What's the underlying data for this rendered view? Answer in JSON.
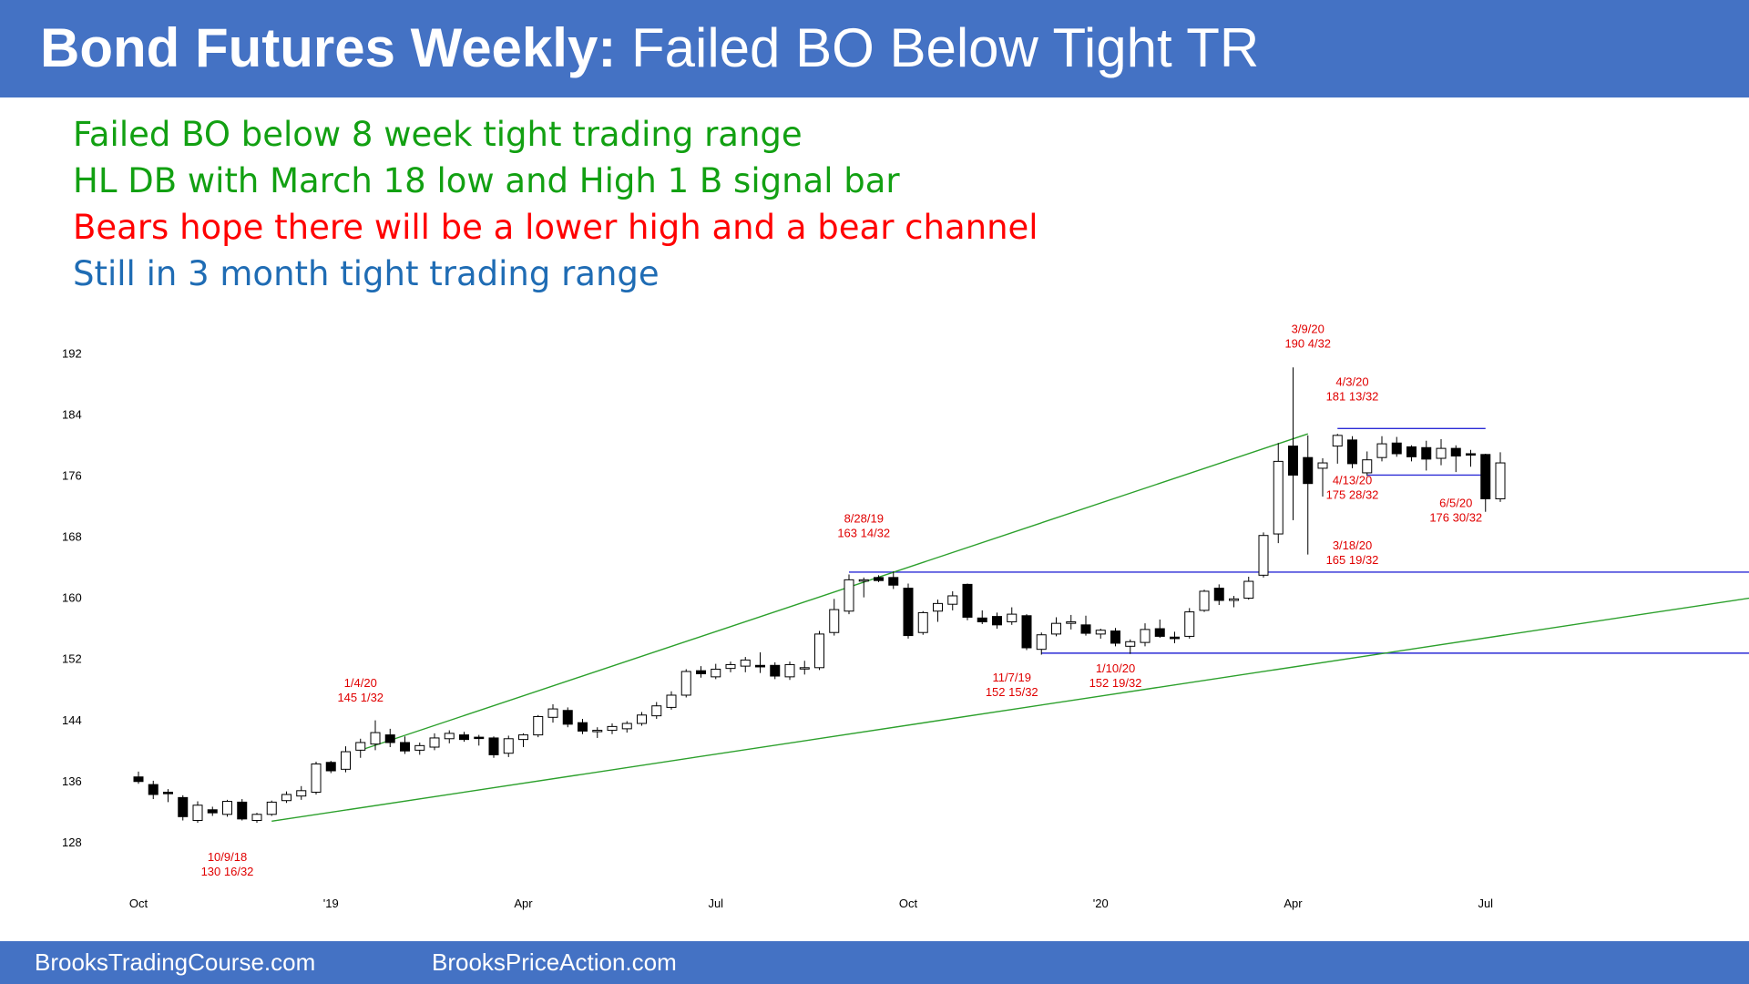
{
  "header": {
    "title_bold": "Bond Futures Weekly:",
    "title_rest": "Failed BO Below Tight TR"
  },
  "notes": [
    {
      "text": "Failed BO below 8 week tight trading range",
      "color": "#12a012"
    },
    {
      "text": "HL DB with March 18 low and High 1 B signal bar",
      "color": "#12a012"
    },
    {
      "text": "Bears hope there will be a lower high and a bear channel",
      "color": "#ff0000"
    },
    {
      "text": "Still in 3 month tight trading range",
      "color": "#1f6cb4"
    }
  ],
  "footer": {
    "left": "BrooksTradingCourse.com",
    "right": "BrooksPriceAction.com"
  },
  "colors": {
    "header_bg": "#4472c4",
    "trendline": "#2ca02c",
    "range_line": "#2c2cd6",
    "annotation": "#e00000"
  },
  "chart_data": {
    "type": "candlestick",
    "title": "",
    "xlabel": "",
    "ylabel": "",
    "ylim": [
      126,
      194
    ],
    "y_ticks": [
      128,
      136,
      144,
      152,
      160,
      168,
      176,
      184,
      192
    ],
    "x_ticks": [
      {
        "label": "Oct",
        "week": 0
      },
      {
        "label": "'19",
        "week": 13
      },
      {
        "label": "Apr",
        "week": 26
      },
      {
        "label": "Jul",
        "week": 39
      },
      {
        "label": "Oct",
        "week": 52
      },
      {
        "label": "'20",
        "week": 65
      },
      {
        "label": "Apr",
        "week": 78
      },
      {
        "label": "Jul",
        "week": 91
      }
    ],
    "grid": false,
    "candles": [
      {
        "o": 136.5,
        "h": 137.2,
        "l": 135.6,
        "c": 135.9
      },
      {
        "o": 135.5,
        "h": 136.0,
        "l": 133.6,
        "c": 134.2
      },
      {
        "o": 134.5,
        "h": 134.9,
        "l": 133.2,
        "c": 134.3
      },
      {
        "o": 133.8,
        "h": 134.1,
        "l": 130.8,
        "c": 131.3
      },
      {
        "o": 130.8,
        "h": 133.3,
        "l": 130.5,
        "c": 132.8
      },
      {
        "o": 132.2,
        "h": 132.6,
        "l": 131.4,
        "c": 131.8
      },
      {
        "o": 131.6,
        "h": 133.5,
        "l": 131.3,
        "c": 133.3
      },
      {
        "o": 133.2,
        "h": 133.6,
        "l": 130.8,
        "c": 131.0
      },
      {
        "o": 130.8,
        "h": 131.8,
        "l": 130.5,
        "c": 131.6
      },
      {
        "o": 131.6,
        "h": 133.4,
        "l": 131.4,
        "c": 133.2
      },
      {
        "o": 133.4,
        "h": 134.6,
        "l": 133.1,
        "c": 134.2
      },
      {
        "o": 134.0,
        "h": 135.3,
        "l": 133.5,
        "c": 134.7
      },
      {
        "o": 134.5,
        "h": 138.5,
        "l": 134.2,
        "c": 138.2
      },
      {
        "o": 138.4,
        "h": 138.6,
        "l": 137.0,
        "c": 137.3
      },
      {
        "o": 137.5,
        "h": 140.5,
        "l": 137.1,
        "c": 139.8
      },
      {
        "o": 140.0,
        "h": 141.5,
        "l": 139.0,
        "c": 141.0
      },
      {
        "o": 140.8,
        "h": 143.9,
        "l": 140.0,
        "c": 142.3
      },
      {
        "o": 142.0,
        "h": 142.8,
        "l": 140.4,
        "c": 141.0
      },
      {
        "o": 141.0,
        "h": 141.8,
        "l": 139.5,
        "c": 139.9
      },
      {
        "o": 140.0,
        "h": 141.0,
        "l": 139.4,
        "c": 140.6
      },
      {
        "o": 140.4,
        "h": 142.2,
        "l": 140.0,
        "c": 141.6
      },
      {
        "o": 141.5,
        "h": 142.6,
        "l": 140.9,
        "c": 142.2
      },
      {
        "o": 142.0,
        "h": 142.4,
        "l": 141.1,
        "c": 141.4
      },
      {
        "o": 141.7,
        "h": 142.0,
        "l": 140.6,
        "c": 141.6
      },
      {
        "o": 141.6,
        "h": 141.8,
        "l": 139.0,
        "c": 139.4
      },
      {
        "o": 139.6,
        "h": 141.9,
        "l": 139.1,
        "c": 141.5
      },
      {
        "o": 141.4,
        "h": 142.2,
        "l": 140.4,
        "c": 142.0
      },
      {
        "o": 142.0,
        "h": 144.6,
        "l": 141.7,
        "c": 144.4
      },
      {
        "o": 144.3,
        "h": 146.0,
        "l": 143.6,
        "c": 145.4
      },
      {
        "o": 145.2,
        "h": 145.6,
        "l": 143.0,
        "c": 143.4
      },
      {
        "o": 143.6,
        "h": 144.1,
        "l": 142.1,
        "c": 142.5
      },
      {
        "o": 142.6,
        "h": 143.0,
        "l": 141.6,
        "c": 142.6
      },
      {
        "o": 142.6,
        "h": 143.5,
        "l": 142.1,
        "c": 143.1
      },
      {
        "o": 142.8,
        "h": 143.8,
        "l": 142.3,
        "c": 143.5
      },
      {
        "o": 143.5,
        "h": 145.0,
        "l": 143.2,
        "c": 144.6
      },
      {
        "o": 144.5,
        "h": 146.3,
        "l": 144.1,
        "c": 145.8
      },
      {
        "o": 145.6,
        "h": 147.7,
        "l": 145.3,
        "c": 147.2
      },
      {
        "o": 147.2,
        "h": 150.6,
        "l": 146.9,
        "c": 150.3
      },
      {
        "o": 150.4,
        "h": 151.0,
        "l": 149.5,
        "c": 150.0
      },
      {
        "o": 149.6,
        "h": 151.3,
        "l": 149.3,
        "c": 150.6
      },
      {
        "o": 150.7,
        "h": 151.6,
        "l": 150.2,
        "c": 151.2
      },
      {
        "o": 151.0,
        "h": 152.2,
        "l": 150.2,
        "c": 151.8
      },
      {
        "o": 151.1,
        "h": 152.8,
        "l": 150.1,
        "c": 150.9
      },
      {
        "o": 151.1,
        "h": 151.5,
        "l": 149.3,
        "c": 149.7
      },
      {
        "o": 149.6,
        "h": 151.6,
        "l": 149.2,
        "c": 151.2
      },
      {
        "o": 150.7,
        "h": 151.7,
        "l": 149.9,
        "c": 150.8
      },
      {
        "o": 150.8,
        "h": 155.6,
        "l": 150.5,
        "c": 155.2
      },
      {
        "o": 155.4,
        "h": 159.8,
        "l": 155.0,
        "c": 158.4
      },
      {
        "o": 158.2,
        "h": 163.0,
        "l": 157.8,
        "c": 162.3
      },
      {
        "o": 162.2,
        "h": 162.6,
        "l": 160.0,
        "c": 162.3
      },
      {
        "o": 162.6,
        "h": 162.9,
        "l": 162.0,
        "c": 162.2
      },
      {
        "o": 162.6,
        "h": 163.4,
        "l": 161.1,
        "c": 161.6
      },
      {
        "o": 161.2,
        "h": 161.8,
        "l": 154.6,
        "c": 155.0
      },
      {
        "o": 155.4,
        "h": 158.2,
        "l": 155.1,
        "c": 158.0
      },
      {
        "o": 158.2,
        "h": 159.7,
        "l": 156.8,
        "c": 159.2
      },
      {
        "o": 159.1,
        "h": 160.8,
        "l": 158.3,
        "c": 160.2
      },
      {
        "o": 161.7,
        "h": 161.8,
        "l": 157.0,
        "c": 157.4
      },
      {
        "o": 157.3,
        "h": 158.3,
        "l": 156.5,
        "c": 156.8
      },
      {
        "o": 157.5,
        "h": 158.0,
        "l": 155.9,
        "c": 156.4
      },
      {
        "o": 156.8,
        "h": 158.7,
        "l": 156.4,
        "c": 157.8
      },
      {
        "o": 157.6,
        "h": 157.8,
        "l": 153.1,
        "c": 153.4
      },
      {
        "o": 153.2,
        "h": 155.4,
        "l": 152.5,
        "c": 155.1
      },
      {
        "o": 155.2,
        "h": 157.4,
        "l": 154.9,
        "c": 156.6
      },
      {
        "o": 156.6,
        "h": 157.7,
        "l": 155.8,
        "c": 156.8
      },
      {
        "o": 156.4,
        "h": 157.6,
        "l": 155.0,
        "c": 155.3
      },
      {
        "o": 155.2,
        "h": 155.9,
        "l": 154.6,
        "c": 155.7
      },
      {
        "o": 155.6,
        "h": 156.0,
        "l": 153.6,
        "c": 154.0
      },
      {
        "o": 153.6,
        "h": 154.5,
        "l": 152.6,
        "c": 154.2
      },
      {
        "o": 154.1,
        "h": 156.6,
        "l": 153.6,
        "c": 155.8
      },
      {
        "o": 155.9,
        "h": 157.1,
        "l": 154.7,
        "c": 154.9
      },
      {
        "o": 154.8,
        "h": 155.5,
        "l": 154.0,
        "c": 154.6
      },
      {
        "o": 154.9,
        "h": 158.6,
        "l": 154.6,
        "c": 158.1
      },
      {
        "o": 158.3,
        "h": 161.0,
        "l": 158.1,
        "c": 160.8
      },
      {
        "o": 161.2,
        "h": 161.7,
        "l": 159.0,
        "c": 159.6
      },
      {
        "o": 159.6,
        "h": 160.2,
        "l": 158.7,
        "c": 159.8
      },
      {
        "o": 159.9,
        "h": 162.7,
        "l": 159.7,
        "c": 162.1
      },
      {
        "o": 162.9,
        "h": 168.5,
        "l": 162.6,
        "c": 168.1
      },
      {
        "o": 168.3,
        "h": 180.2,
        "l": 167.1,
        "c": 177.8
      },
      {
        "o": 179.8,
        "h": 190.1,
        "l": 170.1,
        "c": 176.0
      },
      {
        "o": 178.3,
        "h": 181.2,
        "l": 165.6,
        "c": 174.9
      },
      {
        "o": 176.9,
        "h": 178.2,
        "l": 173.2,
        "c": 177.6
      },
      {
        "o": 179.8,
        "h": 181.4,
        "l": 177.5,
        "c": 181.2
      },
      {
        "o": 180.6,
        "h": 181.1,
        "l": 176.9,
        "c": 177.5
      },
      {
        "o": 176.3,
        "h": 179.1,
        "l": 175.9,
        "c": 178.0
      },
      {
        "o": 178.3,
        "h": 181.1,
        "l": 177.8,
        "c": 180.1
      },
      {
        "o": 180.2,
        "h": 181.0,
        "l": 178.4,
        "c": 178.8
      },
      {
        "o": 179.7,
        "h": 179.9,
        "l": 177.8,
        "c": 178.4
      },
      {
        "o": 179.6,
        "h": 180.5,
        "l": 176.6,
        "c": 178.1
      },
      {
        "o": 178.2,
        "h": 180.7,
        "l": 177.3,
        "c": 179.5
      },
      {
        "o": 179.5,
        "h": 179.9,
        "l": 176.4,
        "c": 178.5
      },
      {
        "o": 178.8,
        "h": 179.3,
        "l": 177.1,
        "c": 178.7
      },
      {
        "o": 178.7,
        "h": 178.8,
        "l": 171.2,
        "c": 172.9
      },
      {
        "o": 172.9,
        "h": 179.0,
        "l": 172.5,
        "c": 177.6
      }
    ],
    "trendlines": [
      {
        "from": {
          "week": 9,
          "price": 130.7
        },
        "to": {
          "week": 116,
          "price": 162.0
        }
      },
      {
        "from": {
          "week": 15,
          "price": 140.0
        },
        "to": {
          "week": 79,
          "price": 181.4
        }
      }
    ],
    "range_lines": [
      {
        "from_week": 48,
        "to_week": 116,
        "price": 163.3
      },
      {
        "from_week": 61,
        "to_week": 116,
        "price": 152.7
      },
      {
        "from_week": 81,
        "to_week": 91,
        "price": 182.1
      },
      {
        "from_week": 83,
        "to_week": 91,
        "price": 176.0
      }
    ],
    "annotations": [
      {
        "week": 6,
        "price": 125.5,
        "lines": [
          "10/9/18",
          "130 16/32"
        ]
      },
      {
        "week": 15,
        "price": 148.3,
        "lines": [
          "1/4/20",
          "145 1/32"
        ]
      },
      {
        "week": 49,
        "price": 169.8,
        "lines": [
          "8/28/19",
          "163 14/32"
        ]
      },
      {
        "week": 59,
        "price": 149.0,
        "lines": [
          "11/7/19",
          "152 15/32"
        ]
      },
      {
        "week": 66,
        "price": 150.2,
        "lines": [
          "1/10/20",
          "152 19/32"
        ]
      },
      {
        "week": 79,
        "price": 194.6,
        "lines": [
          "3/9/20",
          "190 4/32"
        ]
      },
      {
        "week": 82,
        "price": 187.7,
        "lines": [
          "4/3/20",
          "181 13/32"
        ]
      },
      {
        "week": 82,
        "price": 174.8,
        "lines": [
          "4/13/20",
          "175 28/32"
        ]
      },
      {
        "week": 82,
        "price": 166.3,
        "lines": [
          "3/18/20",
          "165 19/32"
        ]
      },
      {
        "week": 89,
        "price": 171.8,
        "lines": [
          "6/5/20",
          "176 30/32"
        ]
      }
    ]
  }
}
